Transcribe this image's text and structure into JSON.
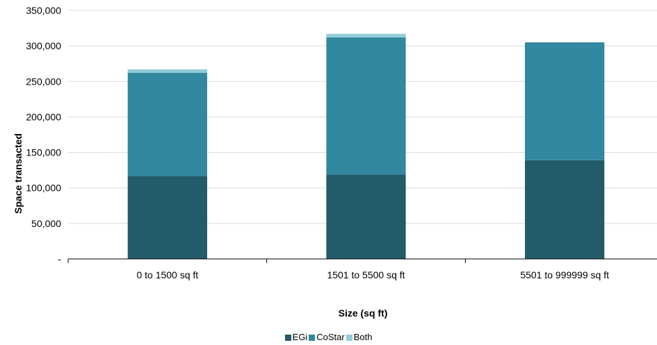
{
  "chart_data": {
    "type": "bar",
    "stacked": true,
    "categories": [
      "0 to 1500 sq ft",
      "1501 to 5500 sq ft",
      "5501 to 999999 sq ft"
    ],
    "series": [
      {
        "name": "EGi",
        "color": "#225b69",
        "values": [
          117000,
          119000,
          139000
        ]
      },
      {
        "name": "CoStar",
        "color": "#32889e",
        "values": [
          145000,
          193000,
          166000
        ]
      },
      {
        "name": "Both",
        "color": "#92cddc",
        "values": [
          5000,
          5000,
          0
        ]
      }
    ],
    "ylim": [
      0,
      350000
    ],
    "yticks": [
      0,
      50000,
      100000,
      150000,
      200000,
      250000,
      300000,
      350000
    ],
    "ytick_labels": [
      "-",
      "50,000",
      "100,000",
      "150,000",
      "200,000",
      "250,000",
      "300,000",
      "350,000"
    ],
    "xlabel": "Size (sq ft)",
    "ylabel": "Space transacted",
    "grid": true,
    "legend_position": "bottom"
  }
}
